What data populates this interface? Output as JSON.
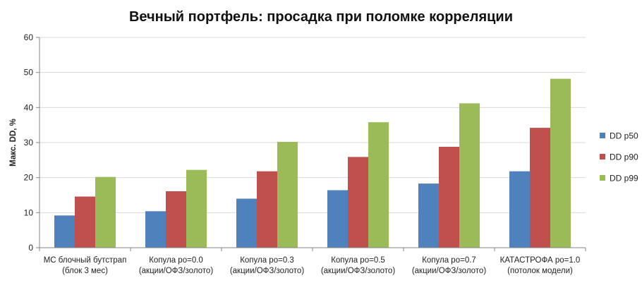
{
  "chart_data": {
    "type": "bar",
    "title": "Вечный портфель: просадка при поломке корреляции",
    "xlabel": "",
    "ylabel": "Макс. DD, %",
    "ylim": [
      0,
      60
    ],
    "yticks": [
      0,
      10,
      20,
      30,
      40,
      50,
      60
    ],
    "grid": true,
    "legend_position": "right",
    "categories": [
      [
        "MC блочный бутстрап",
        "(блок 3 мес)"
      ],
      [
        "Копула ро=0.0",
        "(акции/ОФЗ/золото)"
      ],
      [
        "Копула ро=0.3",
        "(акции/ОФЗ/золото)"
      ],
      [
        "Копула ро=0.5",
        "(акции/ОФЗ/золото)"
      ],
      [
        "Копула ро=0.7",
        "(акции/ОФЗ/золото)"
      ],
      [
        "КАТАСТРОФА ро=1.0",
        "(потолок модели)"
      ]
    ],
    "series": [
      {
        "name": "DD p50",
        "color": "#4f81bd",
        "values": [
          9.2,
          10.4,
          14.0,
          16.4,
          18.3,
          21.8
        ]
      },
      {
        "name": "DD p90",
        "color": "#c0504d",
        "values": [
          14.6,
          16.1,
          21.8,
          25.9,
          28.8,
          34.2
        ]
      },
      {
        "name": "DD p99",
        "color": "#9bbb59",
        "values": [
          20.2,
          22.2,
          30.2,
          35.8,
          41.2,
          48.2
        ]
      }
    ]
  }
}
